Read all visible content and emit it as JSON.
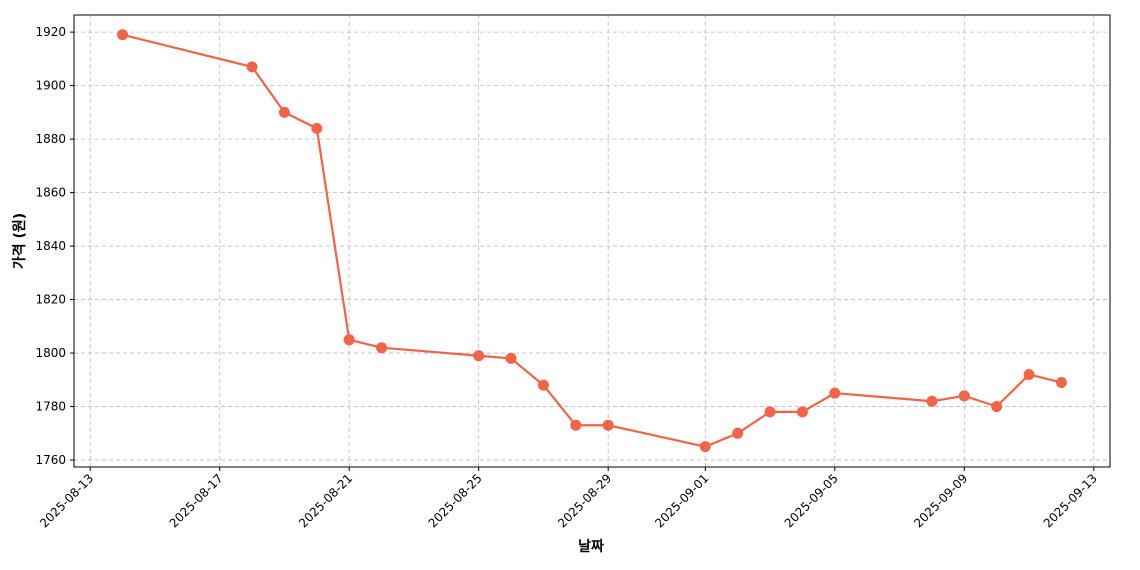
{
  "chart_data": {
    "type": "line",
    "x_label": "날짜",
    "y_label": "가격 (원)",
    "x": [
      "2025-08-14",
      "2025-08-18",
      "2025-08-19",
      "2025-08-20",
      "2025-08-21",
      "2025-08-22",
      "2025-08-25",
      "2025-08-26",
      "2025-08-27",
      "2025-08-28",
      "2025-08-29",
      "2025-09-01",
      "2025-09-02",
      "2025-09-03",
      "2025-09-04",
      "2025-09-05",
      "2025-09-08",
      "2025-09-09",
      "2025-09-10",
      "2025-09-11",
      "2025-09-12"
    ],
    "values": [
      1919,
      1907,
      1890,
      1884,
      1805,
      1802,
      1799,
      1798,
      1788,
      1773,
      1773,
      1765,
      1770,
      1778,
      1778,
      1785,
      1782,
      1784,
      1780,
      1792,
      1789
    ],
    "color": "#f26447",
    "xlim": [
      "2025-08-12T12:00",
      "2025-09-13T12:00"
    ],
    "xticks": [
      "2025-08-13",
      "2025-08-17",
      "2025-08-21",
      "2025-08-25",
      "2025-08-29",
      "2025-09-01",
      "2025-09-05",
      "2025-09-09",
      "2025-09-13"
    ],
    "ylim": [
      1757.4,
      1926.4
    ],
    "yticks": [
      1760,
      1780,
      1800,
      1820,
      1840,
      1860,
      1880,
      1900,
      1920
    ],
    "grid": true
  }
}
